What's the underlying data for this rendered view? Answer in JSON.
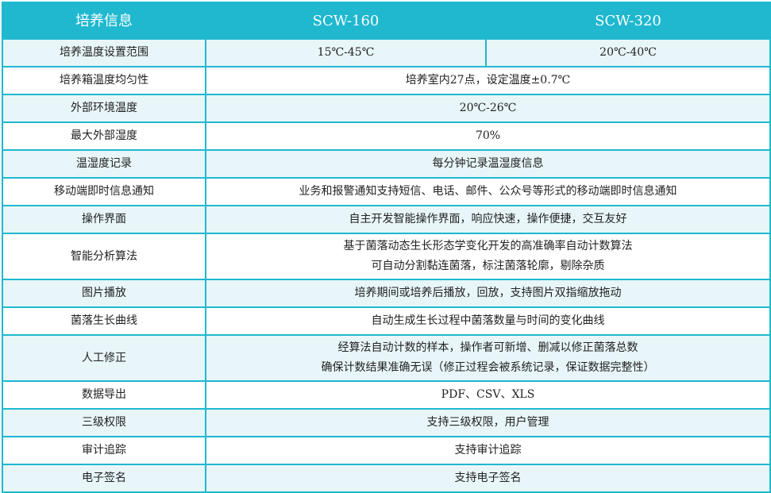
{
  "header": {
    "col0": "培养信息",
    "col1": "SCW-160",
    "col2": "SCW-320"
  },
  "colors": {
    "accent": "#1fb8cf",
    "row_alt": "#e8f6f9"
  },
  "temp_range": {
    "label": "培养温度设置范围",
    "scw160": "15℃-45℃",
    "scw320": "20℃-40℃"
  },
  "rows": [
    {
      "label": "培养箱温度均匀性",
      "lines": [
        "培养室内27点，设定温度±0.7℃"
      ]
    },
    {
      "label": "外部环境温度",
      "lines": [
        "20℃-26℃"
      ]
    },
    {
      "label": "最大外部湿度",
      "lines": [
        "70%"
      ]
    },
    {
      "label": "温湿度记录",
      "lines": [
        "每分钟记录温湿度信息"
      ]
    },
    {
      "label": "移动端即时信息通知",
      "lines": [
        "业务和报警通知支持短信、电话、邮件、公众号等形式的移动端即时信息通知"
      ]
    },
    {
      "label": "操作界面",
      "lines": [
        "自主开发智能操作界面，响应快速，操作便捷，交互友好"
      ]
    },
    {
      "label": "智能分析算法",
      "lines": [
        "基于菌落动态生长形态学变化开发的高准确率自动计数算法",
        "可自动分割黏连菌落，标注菌落轮廓，剔除杂质"
      ]
    },
    {
      "label": "图片播放",
      "lines": [
        "培养期间或培养后播放，回放，支持图片双指缩放拖动"
      ]
    },
    {
      "label": "菌落生长曲线",
      "lines": [
        "自动生成生长过程中菌落数量与时间的变化曲线"
      ]
    },
    {
      "label": "人工修正",
      "lines": [
        "经算法自动计数的样本，操作者可新增、删减以修正菌落总数",
        "确保计数结果准确无误（修正过程会被系统记录，保证数据完整性）"
      ]
    },
    {
      "label": "数据导出",
      "lines": [
        "PDF、CSV、XLS"
      ]
    },
    {
      "label": "三级权限",
      "lines": [
        "支持三级权限，用户管理"
      ]
    },
    {
      "label": "审计追踪",
      "lines": [
        "支持审计追踪"
      ]
    },
    {
      "label": "电子签名",
      "lines": [
        "支持电子签名"
      ]
    }
  ]
}
